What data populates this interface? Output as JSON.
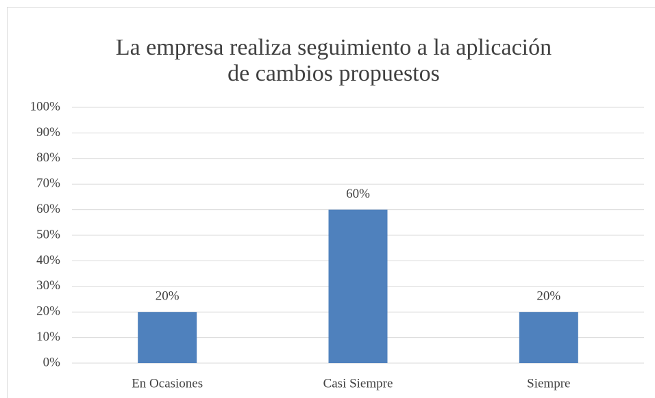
{
  "chart_data": {
    "type": "bar",
    "title": [
      "La empresa realiza seguimiento a la aplicación",
      "de cambios propuestos"
    ],
    "categories": [
      "En Ocasiones",
      "Casi Siempre",
      "Siempre"
    ],
    "values": [
      20,
      60,
      20
    ],
    "value_labels": [
      "20%",
      "60%",
      "20%"
    ],
    "color": "#4f81bd",
    "ylim": [
      0,
      100
    ],
    "yticks": [
      {
        "value": 0,
        "label": "0%"
      },
      {
        "value": 10,
        "label": "10%"
      },
      {
        "value": 20,
        "label": "20%"
      },
      {
        "value": 30,
        "label": "30%"
      },
      {
        "value": 40,
        "label": "40%"
      },
      {
        "value": 50,
        "label": "50%"
      },
      {
        "value": 60,
        "label": "60%"
      },
      {
        "value": 70,
        "label": "70%"
      },
      {
        "value": 80,
        "label": "80%"
      },
      {
        "value": 90,
        "label": "90%"
      },
      {
        "value": 100,
        "label": "100%"
      }
    ],
    "grid": true
  }
}
